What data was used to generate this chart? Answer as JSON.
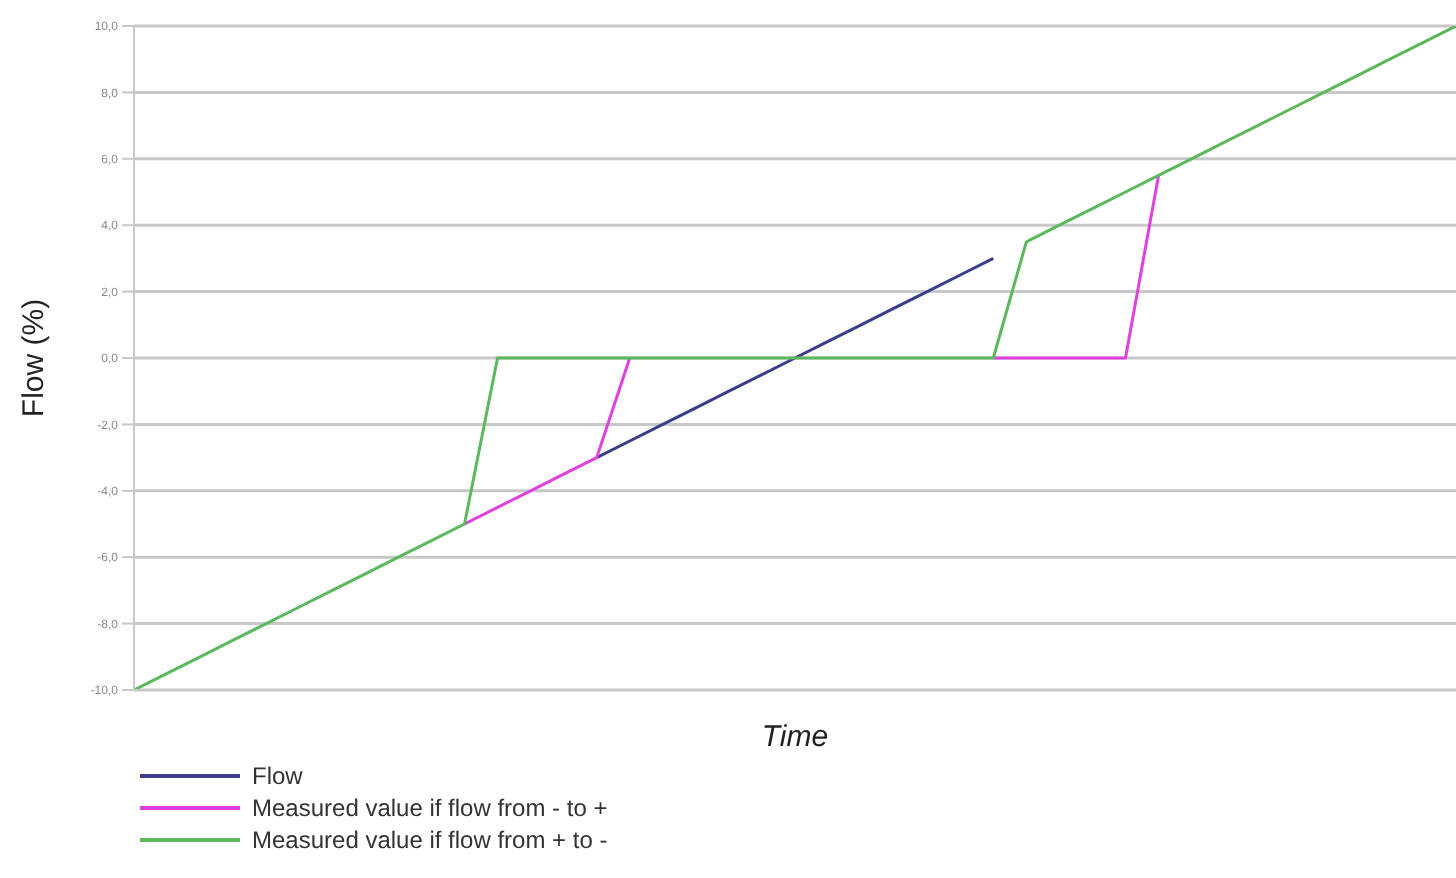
{
  "chart_data": {
    "type": "line",
    "ylabel": "Flow (%)",
    "xlabel": "Time",
    "categories": [
      null,
      null,
      null,
      null,
      null,
      null,
      null,
      null,
      null,
      null,
      null,
      null,
      null,
      null,
      null,
      null,
      null,
      null,
      null,
      null,
      null,
      null,
      null,
      null,
      null,
      null,
      null,
      null,
      null,
      null,
      null,
      null,
      null,
      null,
      null,
      null,
      null,
      null,
      null,
      null,
      null
    ],
    "series": [
      {
        "name": "Flow",
        "color": "#3c3c8c",
        "values": [
          null,
          null,
          null,
          null,
          null,
          null,
          null,
          null,
          null,
          null,
          null,
          null,
          null,
          null,
          -3,
          -2.5,
          -2,
          -1.5,
          -1,
          -0.5,
          0,
          0.5,
          1,
          1.5,
          2,
          2.5,
          3,
          null,
          null,
          null,
          null,
          null,
          null,
          null,
          null,
          null,
          null,
          null,
          null,
          null,
          null
        ]
      },
      {
        "name": "Measured value if flow from - to +",
        "color": "#e040e0",
        "values": [
          null,
          null,
          null,
          null,
          null,
          null,
          null,
          null,
          null,
          null,
          -5,
          -4.5,
          -4,
          -3.5,
          -3,
          0,
          null,
          null,
          null,
          null,
          null,
          null,
          null,
          null,
          null,
          null,
          0,
          0,
          0,
          0,
          0,
          5.5,
          null,
          null,
          null,
          null,
          null,
          null,
          null,
          null,
          null
        ]
      },
      {
        "name": "Measured value if flow from + to -",
        "color": "#5cb85c",
        "values": [
          -10,
          -9.5,
          -9,
          -8.5,
          -8,
          -7.5,
          -7,
          -6.5,
          -6,
          -5.5,
          -5,
          0,
          0,
          0,
          0,
          0,
          0,
          0,
          0,
          0,
          0,
          0,
          0,
          0,
          0,
          0,
          0,
          3.5,
          4,
          4.5,
          5,
          5.5,
          6,
          6.5,
          7,
          7.5,
          8,
          8.5,
          9,
          9.5,
          10
        ]
      }
    ],
    "ylim": [
      -10,
      10
    ],
    "yticks": [
      {
        "value": -10,
        "label": "-10,0"
      },
      {
        "value": -8,
        "label": "-8,0"
      },
      {
        "value": -6,
        "label": "-6,0"
      },
      {
        "value": -4,
        "label": "-4,0"
      },
      {
        "value": -2,
        "label": "-2,0"
      },
      {
        "value": 0,
        "label": "0,0"
      },
      {
        "value": 2,
        "label": "2,0"
      },
      {
        "value": 4,
        "label": "4,0"
      },
      {
        "value": 6,
        "label": "6,0"
      },
      {
        "value": 8,
        "label": "8,0"
      },
      {
        "value": 10,
        "label": "10,0"
      }
    ],
    "grid": "y",
    "legend": "bottom",
    "marker": "none",
    "line_style": "solid"
  }
}
